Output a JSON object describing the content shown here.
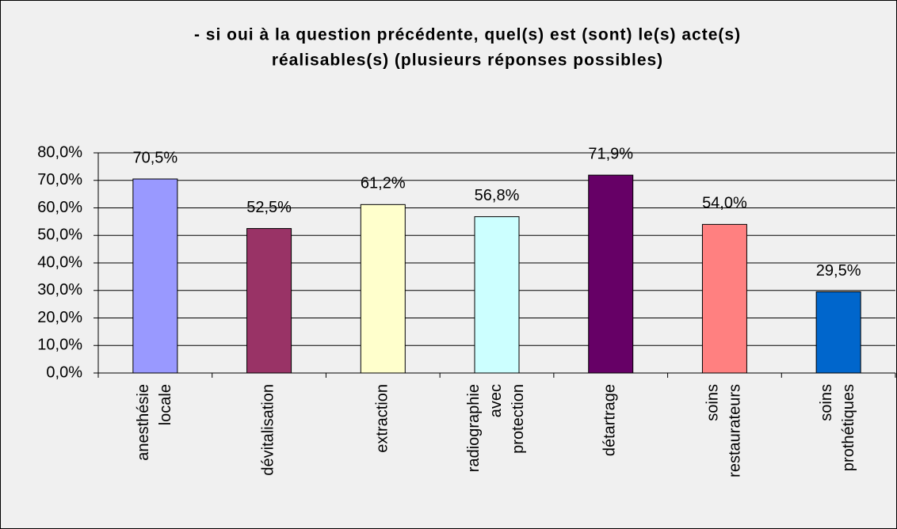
{
  "chart_data": {
    "type": "bar",
    "title": [
      "- si oui à la question précédente, quel(s) est (sont) le(s) acte(s)",
      "réalisables(s) (plusieurs réponses possibles)"
    ],
    "categories": [
      "anesthésie locale",
      "dévitalisation",
      "extraction",
      "radiographie avec protection",
      "détartrage",
      "soins restaurateurs",
      "soins prothétiques"
    ],
    "values": [
      70.5,
      52.5,
      61.2,
      56.8,
      71.9,
      54.0,
      29.5
    ],
    "value_labels": [
      "70,5%",
      "52,5%",
      "61,2%",
      "56,8%",
      "71,9%",
      "54,0%",
      "29,5%"
    ],
    "colors": [
      "#9999ff",
      "#993366",
      "#ffffcc",
      "#ccffff",
      "#660066",
      "#ff8080",
      "#0066cc"
    ],
    "ylim": [
      0,
      80
    ],
    "yticks": [
      {
        "value": 0,
        "label": "0,0%"
      },
      {
        "value": 10,
        "label": "10,0%"
      },
      {
        "value": 20,
        "label": "20,0%"
      },
      {
        "value": 30,
        "label": "30,0%"
      },
      {
        "value": 40,
        "label": "40,0%"
      },
      {
        "value": 50,
        "label": "50,0%"
      },
      {
        "value": 60,
        "label": "60,0%"
      },
      {
        "value": 70,
        "label": "70,0%"
      },
      {
        "value": 80,
        "label": "80,0%"
      }
    ],
    "grid": true
  }
}
